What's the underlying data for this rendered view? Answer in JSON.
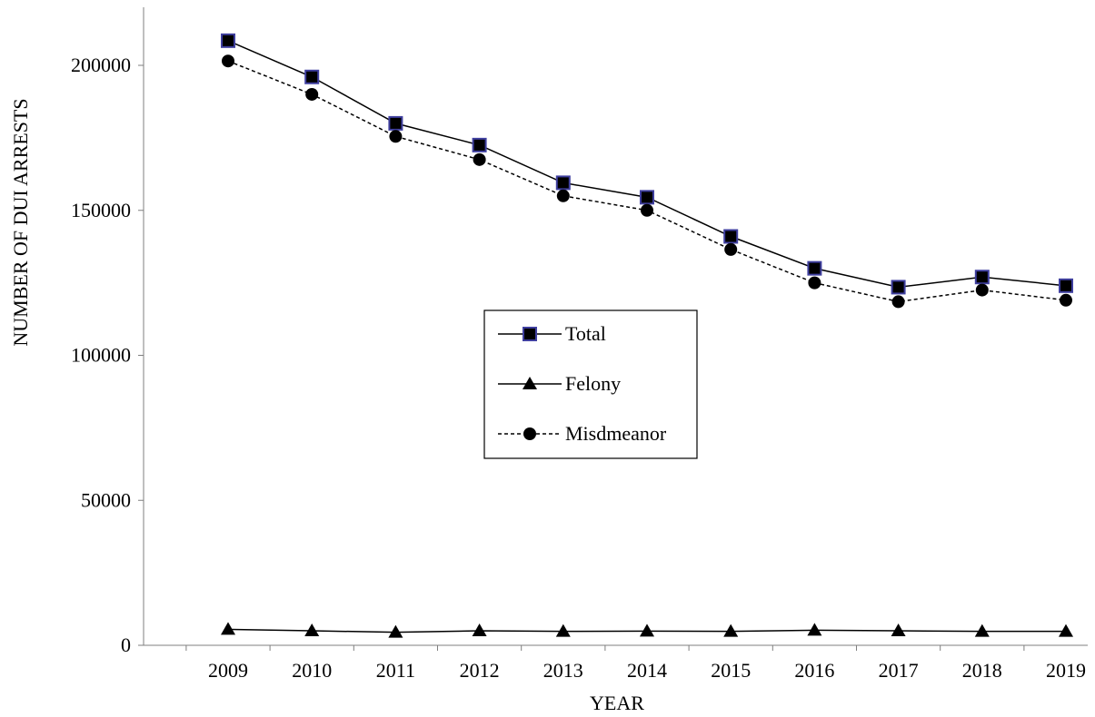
{
  "chart_data": {
    "type": "line",
    "title": "",
    "xlabel": "YEAR",
    "ylabel": "NUMBER OF DUI ARRESTS",
    "x": [
      "2009",
      "2010",
      "2011",
      "2012",
      "2013",
      "2014",
      "2015",
      "2016",
      "2017",
      "2018",
      "2019"
    ],
    "y_ticks": [
      "0",
      "50000",
      "100000",
      "150000",
      "200000"
    ],
    "ylim": [
      0,
      220000
    ],
    "grid": false,
    "legend_position": "center",
    "series": [
      {
        "name": "Total",
        "marker": "square",
        "line_style": "solid",
        "color": "#000000",
        "marker_edge_color": "#3f3f9f",
        "values": [
          208500,
          196000,
          180000,
          172500,
          159500,
          154500,
          141000,
          130000,
          123500,
          127000,
          124000
        ]
      },
      {
        "name": "Felony",
        "marker": "triangle",
        "line_style": "solid",
        "color": "#000000",
        "values": [
          5500,
          5000,
          4500,
          5000,
          4800,
          4900,
          4800,
          5200,
          5000,
          4800,
          4800
        ]
      },
      {
        "name": "Misdmeanor",
        "marker": "circle",
        "line_style": "dashed",
        "color": "#000000",
        "values": [
          201500,
          190000,
          175500,
          167500,
          155000,
          150000,
          136500,
          125000,
          118500,
          122500,
          119000
        ]
      }
    ]
  }
}
